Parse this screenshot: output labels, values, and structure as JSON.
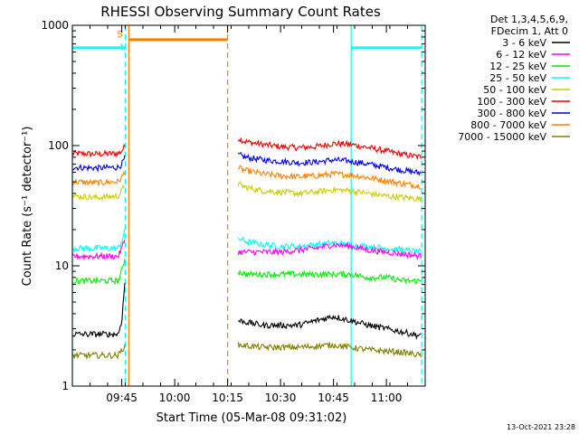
{
  "chart_data": {
    "type": "line",
    "title": "RHESSI Observing Summary Count Rates",
    "xlabel": "Start Time (05-Mar-08 09:31:02)",
    "ylabel": "Count Rate (s⁻¹ detector⁻¹)",
    "y_scale": "log",
    "ylim": [
      1,
      1000
    ],
    "y_ticks": [
      {
        "value": 1,
        "label": "1"
      },
      {
        "value": 10,
        "label": "10"
      },
      {
        "value": 100,
        "label": "100"
      },
      {
        "value": 1000,
        "label": "1000"
      }
    ],
    "xlim": [
      "09:31",
      "11:11"
    ],
    "x_ticks": [
      {
        "time": "09:45",
        "label": "09:45"
      },
      {
        "time": "10:00",
        "label": "10:00"
      },
      {
        "time": "10:15",
        "label": "10:15"
      },
      {
        "time": "10:30",
        "label": "10:30"
      },
      {
        "time": "10:45",
        "label": "10:45"
      },
      {
        "time": "11:00",
        "label": "11:00"
      }
    ],
    "legend": {
      "placement": "right",
      "header": [
        "Det 1,3,4,5,6,9,",
        "FDecim 1, Att 0"
      ],
      "entries": [
        {
          "label": "3 - 6 keV",
          "color": "#000000"
        },
        {
          "label": "6 - 12 keV",
          "color": "#ff00ff"
        },
        {
          "label": "12 - 25 keV",
          "color": "#00ee00"
        },
        {
          "label": "25 - 50 keV",
          "color": "#00ffff"
        },
        {
          "label": "50 - 100 keV",
          "color": "#cccc00"
        },
        {
          "label": "100 - 300 keV",
          "color": "#ee0000"
        },
        {
          "label": "300 - 800 keV",
          "color": "#0000ee"
        },
        {
          "label": "800 - 7000 keV",
          "color": "#ff7f00"
        },
        {
          "label": "7000 - 15000 keV",
          "color": "#808000"
        }
      ]
    },
    "series": [
      {
        "color": "#ee0000",
        "segments": [
          {
            "x": [
              "09:31",
              "09:38",
              "09:44",
              "09:45",
              "09:46"
            ],
            "y": [
              86,
              85,
              86,
              90,
              100
            ]
          },
          {
            "x": [
              "10:18",
              "10:20",
              "10:25",
              "10:30",
              "10:35",
              "10:40",
              "10:45",
              "10:50",
              "10:55",
              "11:00",
              "11:05",
              "11:10"
            ],
            "y": [
              115,
              108,
              102,
              98,
              96,
              98,
              104,
              102,
              96,
              90,
              84,
              80
            ]
          }
        ]
      },
      {
        "color": "#0000ee",
        "segments": [
          {
            "x": [
              "09:31",
              "09:38",
              "09:44",
              "09:45",
              "09:46"
            ],
            "y": [
              66,
              65,
              66,
              70,
              80
            ]
          },
          {
            "x": [
              "10:18",
              "10:20",
              "10:25",
              "10:30",
              "10:35",
              "10:40",
              "10:45",
              "10:50",
              "10:55",
              "11:00",
              "11:05",
              "11:10"
            ],
            "y": [
              84,
              80,
              76,
              74,
              72,
              73,
              76,
              74,
              70,
              66,
              62,
              59
            ]
          }
        ]
      },
      {
        "color": "#ff7f00",
        "segments": [
          {
            "x": [
              "09:31",
              "09:38",
              "09:44",
              "09:45",
              "09:46"
            ],
            "y": [
              50,
              49,
              50,
              54,
              62
            ]
          },
          {
            "x": [
              "10:18",
              "10:20",
              "10:25",
              "10:30",
              "10:35",
              "10:40",
              "10:45",
              "10:50",
              "10:55",
              "11:00",
              "11:05",
              "11:10"
            ],
            "y": [
              65,
              62,
              58,
              56,
              55,
              56,
              58,
              57,
              54,
              51,
              48,
              46
            ]
          }
        ]
      },
      {
        "color": "#cccc00",
        "segments": [
          {
            "x": [
              "09:31",
              "09:38",
              "09:44",
              "09:45",
              "09:46"
            ],
            "y": [
              38,
              37,
              38,
              42,
              48
            ]
          },
          {
            "x": [
              "10:18",
              "10:20",
              "10:25",
              "10:30",
              "10:35",
              "10:40",
              "10:45",
              "10:50",
              "10:55",
              "11:00",
              "11:05",
              "11:10"
            ],
            "y": [
              48,
              45,
              42,
              41,
              40,
              41,
              43,
              42,
              40,
              38,
              37,
              36
            ]
          }
        ]
      },
      {
        "color": "#00ffff",
        "segments": [
          {
            "x": [
              "09:31",
              "09:38",
              "09:44",
              "09:45",
              "09:46"
            ],
            "y": [
              14,
              14,
              14,
              16,
              20
            ]
          },
          {
            "x": [
              "10:18",
              "10:20",
              "10:25",
              "10:30",
              "10:35",
              "10:40",
              "10:45",
              "10:50",
              "10:55",
              "11:00",
              "11:05",
              "11:10"
            ],
            "y": [
              17,
              16,
              15,
              14.5,
              14.5,
              15,
              15.5,
              15,
              14.5,
              14,
              13.5,
              13
            ]
          }
        ]
      },
      {
        "color": "#ff00ff",
        "segments": [
          {
            "x": [
              "09:31",
              "09:38",
              "09:44",
              "09:45",
              "09:46"
            ],
            "y": [
              12,
              12,
              12,
              14,
              17
            ]
          },
          {
            "x": [
              "10:18",
              "10:20",
              "10:25",
              "10:30",
              "10:35",
              "10:40",
              "10:45",
              "10:50",
              "10:55",
              "11:00",
              "11:05",
              "11:10"
            ],
            "y": [
              13,
              13,
              13,
              13,
              13.5,
              14,
              15,
              14.5,
              13.5,
              13,
              12.5,
              12
            ]
          }
        ]
      },
      {
        "color": "#00ee00",
        "segments": [
          {
            "x": [
              "09:31",
              "09:38",
              "09:44",
              "09:45",
              "09:46"
            ],
            "y": [
              7.5,
              7.5,
              7.5,
              9,
              12
            ]
          },
          {
            "x": [
              "10:18",
              "10:20",
              "10:25",
              "10:30",
              "10:35",
              "10:40",
              "10:45",
              "10:50",
              "10:55",
              "11:00",
              "11:05",
              "11:10"
            ],
            "y": [
              9,
              8.5,
              8.5,
              8.5,
              8.5,
              8.5,
              8.5,
              8.5,
              8,
              8,
              7.5,
              7.5
            ]
          }
        ]
      },
      {
        "color": "#000000",
        "segments": [
          {
            "x": [
              "09:31",
              "09:38",
              "09:44",
              "09:45",
              "09:46"
            ],
            "y": [
              2.7,
              2.7,
              2.7,
              3.5,
              8
            ]
          },
          {
            "x": [
              "10:18",
              "10:25",
              "10:35",
              "10:40",
              "10:45",
              "10:50",
              "10:55",
              "11:00",
              "11:05",
              "11:10"
            ],
            "y": [
              3.5,
              3.2,
              3.2,
              3.5,
              3.8,
              3.5,
              3.2,
              3,
              2.8,
              2.6
            ]
          }
        ]
      },
      {
        "color": "#808000",
        "segments": [
          {
            "x": [
              "09:31",
              "09:38",
              "09:44",
              "09:46"
            ],
            "y": [
              1.8,
              1.8,
              1.8,
              2.2
            ]
          },
          {
            "x": [
              "10:18",
              "10:25",
              "10:35",
              "10:45",
              "10:55",
              "11:05",
              "11:10"
            ],
            "y": [
              2.2,
              2.1,
              2.1,
              2.2,
              2,
              1.9,
              1.8
            ]
          }
        ]
      }
    ],
    "annotations": [
      {
        "type": "vline",
        "time": "09:31",
        "color": "#00ffff",
        "style": "solid"
      },
      {
        "type": "vline",
        "time": "09:46",
        "color": "#00ffff",
        "style": "dashed"
      },
      {
        "type": "vline",
        "time": "09:47",
        "color": "#ff7f00",
        "style": "solid"
      },
      {
        "type": "vline",
        "time": "10:15",
        "color": "#ff7f00",
        "style": "dashed"
      },
      {
        "type": "vline",
        "time": "10:50",
        "color": "#00ffff",
        "style": "solid"
      },
      {
        "type": "vline",
        "time": "11:10",
        "color": "#00ffff",
        "style": "dashed"
      },
      {
        "type": "hbar",
        "from": "09:31",
        "to": "09:46",
        "y": 650,
        "color": "#00ffff"
      },
      {
        "type": "hbar",
        "from": "09:47",
        "to": "10:15",
        "y": 760,
        "color": "#ff7f00"
      },
      {
        "type": "hbar",
        "from": "10:50",
        "to": "11:10",
        "y": 650,
        "color": "#00ffff"
      },
      {
        "type": "label",
        "text": "S",
        "time": "09:46",
        "y": 800,
        "color": "#ff7f00"
      },
      {
        "type": "label",
        "text": "N",
        "time": "09:47",
        "y": 620,
        "color": "#00ffff"
      }
    ]
  },
  "timestamp": "13-Oct-2021 23:28"
}
